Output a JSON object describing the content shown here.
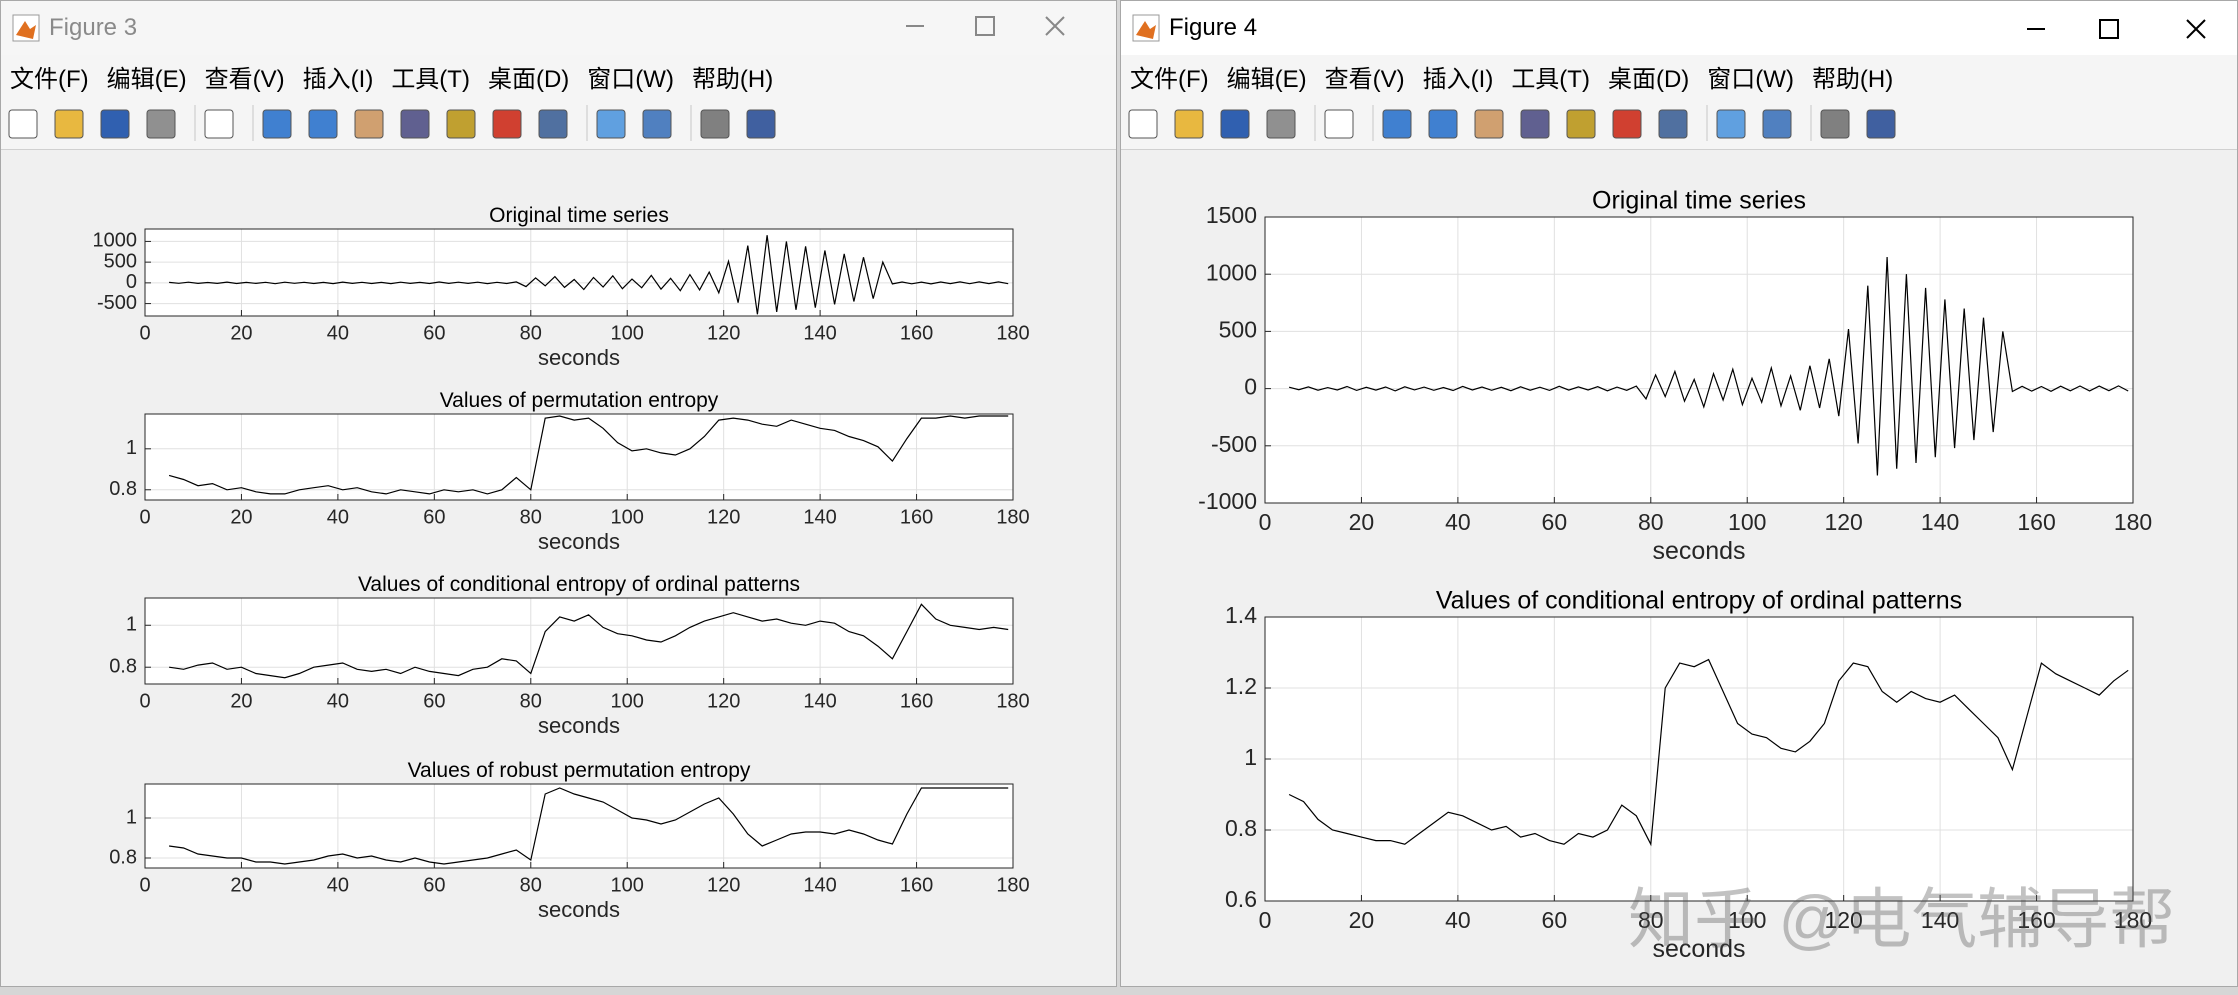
{
  "windows": [
    {
      "title": "Figure 3",
      "menu": [
        "文件(F)",
        "编辑(E)",
        "查看(V)",
        "插入(I)",
        "工具(T)",
        "桌面(D)",
        "窗口(W)",
        "帮助(H)"
      ],
      "charts": [
        {
          "type": "line",
          "title": "Original time series",
          "xlabel": "seconds",
          "color": "#000000",
          "grid": true,
          "xlim": [
            0,
            180
          ],
          "xticks": [
            0,
            20,
            40,
            60,
            80,
            100,
            120,
            140,
            160,
            180
          ],
          "ylim": [
            -800,
            1300
          ],
          "yticks": [
            -500,
            0,
            500,
            1000
          ],
          "x": [
            5,
            7,
            9,
            11,
            13,
            15,
            17,
            19,
            21,
            23,
            25,
            27,
            29,
            31,
            33,
            35,
            37,
            39,
            41,
            43,
            45,
            47,
            49,
            51,
            53,
            55,
            57,
            59,
            61,
            63,
            65,
            67,
            69,
            71,
            73,
            75,
            77,
            79,
            81,
            83,
            85,
            87,
            89,
            91,
            93,
            95,
            97,
            99,
            101,
            103,
            105,
            107,
            109,
            111,
            113,
            115,
            117,
            119,
            121,
            123,
            125,
            127,
            129,
            131,
            133,
            135,
            137,
            139,
            141,
            143,
            145,
            147,
            149,
            151,
            153,
            155,
            157,
            159,
            161,
            163,
            165,
            167,
            169,
            171,
            173,
            175,
            177,
            179
          ],
          "values": [
            12,
            -10,
            15,
            -14,
            9,
            -12,
            18,
            -16,
            11,
            -13,
            14,
            -20,
            16,
            -11,
            13,
            -15,
            10,
            -17,
            19,
            -12,
            14,
            -15,
            11,
            -18,
            16,
            -14,
            12,
            -16,
            20,
            -13,
            15,
            -12,
            17,
            -19,
            13,
            -15,
            22,
            -90,
            120,
            -70,
            150,
            -110,
            80,
            -160,
            130,
            -100,
            170,
            -140,
            90,
            -120,
            180,
            -150,
            110,
            -190,
            200,
            -170,
            260,
            -240,
            520,
            -480,
            900,
            -760,
            1150,
            -700,
            1000,
            -650,
            880,
            -600,
            780,
            -520,
            700,
            -450,
            620,
            -380,
            500,
            -25,
            20,
            -22,
            18,
            -24,
            21,
            -19,
            23,
            -20,
            22,
            -18,
            24,
            -21
          ]
        },
        {
          "type": "line",
          "title": "Values of permutation entropy",
          "xlabel": "seconds",
          "color": "#000000",
          "grid": true,
          "xlim": [
            0,
            180
          ],
          "xticks": [
            0,
            20,
            40,
            60,
            80,
            100,
            120,
            140,
            160,
            180
          ],
          "ylim": [
            0.75,
            1.17
          ],
          "yticks": [
            0.8,
            1
          ],
          "x": [
            5,
            8,
            11,
            14,
            17,
            20,
            23,
            26,
            29,
            32,
            35,
            38,
            41,
            44,
            47,
            50,
            53,
            56,
            59,
            62,
            65,
            68,
            71,
            74,
            77,
            80,
            83,
            86,
            89,
            92,
            95,
            98,
            101,
            104,
            107,
            110,
            113,
            116,
            119,
            122,
            125,
            128,
            131,
            134,
            137,
            140,
            143,
            146,
            149,
            152,
            155,
            158,
            161,
            164,
            167,
            170,
            173,
            176,
            179
          ],
          "values": [
            0.87,
            0.85,
            0.82,
            0.83,
            0.8,
            0.81,
            0.79,
            0.78,
            0.78,
            0.8,
            0.81,
            0.82,
            0.8,
            0.81,
            0.79,
            0.78,
            0.8,
            0.79,
            0.78,
            0.8,
            0.79,
            0.8,
            0.78,
            0.8,
            0.86,
            0.8,
            1.15,
            1.16,
            1.14,
            1.15,
            1.1,
            1.03,
            0.99,
            1.0,
            0.98,
            0.97,
            1.0,
            1.06,
            1.14,
            1.15,
            1.14,
            1.12,
            1.11,
            1.14,
            1.12,
            1.1,
            1.09,
            1.06,
            1.04,
            1.01,
            0.94,
            1.05,
            1.15,
            1.15,
            1.16,
            1.15,
            1.16,
            1.16,
            1.16
          ]
        },
        {
          "type": "line",
          "title": "Values of conditional entropy of ordinal patterns",
          "xlabel": "seconds",
          "color": "#000000",
          "grid": true,
          "xlim": [
            0,
            180
          ],
          "xticks": [
            0,
            20,
            40,
            60,
            80,
            100,
            120,
            140,
            160,
            180
          ],
          "ylim": [
            0.72,
            1.13
          ],
          "yticks": [
            0.8,
            1
          ],
          "x": [
            5,
            8,
            11,
            14,
            17,
            20,
            23,
            26,
            29,
            32,
            35,
            38,
            41,
            44,
            47,
            50,
            53,
            56,
            59,
            62,
            65,
            68,
            71,
            74,
            77,
            80,
            83,
            86,
            89,
            92,
            95,
            98,
            101,
            104,
            107,
            110,
            113,
            116,
            119,
            122,
            125,
            128,
            131,
            134,
            137,
            140,
            143,
            146,
            149,
            152,
            155,
            158,
            161,
            164,
            167,
            170,
            173,
            176,
            179
          ],
          "values": [
            0.8,
            0.79,
            0.81,
            0.82,
            0.79,
            0.8,
            0.77,
            0.76,
            0.75,
            0.77,
            0.8,
            0.81,
            0.82,
            0.79,
            0.78,
            0.79,
            0.77,
            0.8,
            0.78,
            0.77,
            0.76,
            0.79,
            0.8,
            0.84,
            0.83,
            0.77,
            0.97,
            1.04,
            1.02,
            1.05,
            0.99,
            0.96,
            0.95,
            0.93,
            0.92,
            0.95,
            0.99,
            1.02,
            1.04,
            1.06,
            1.04,
            1.02,
            1.03,
            1.01,
            1.0,
            1.02,
            1.01,
            0.97,
            0.95,
            0.9,
            0.84,
            0.97,
            1.1,
            1.03,
            1.0,
            0.99,
            0.98,
            0.99,
            0.98
          ]
        },
        {
          "type": "line",
          "title": "Values of robust permutation entropy",
          "xlabel": "seconds",
          "color": "#000000",
          "grid": true,
          "xlim": [
            0,
            180
          ],
          "xticks": [
            0,
            20,
            40,
            60,
            80,
            100,
            120,
            140,
            160,
            180
          ],
          "ylim": [
            0.75,
            1.17
          ],
          "yticks": [
            0.8,
            1
          ],
          "x": [
            5,
            8,
            11,
            14,
            17,
            20,
            23,
            26,
            29,
            32,
            35,
            38,
            41,
            44,
            47,
            50,
            53,
            56,
            59,
            62,
            65,
            68,
            71,
            74,
            77,
            80,
            83,
            86,
            89,
            92,
            95,
            98,
            101,
            104,
            107,
            110,
            113,
            116,
            119,
            122,
            125,
            128,
            131,
            134,
            137,
            140,
            143,
            146,
            149,
            152,
            155,
            158,
            161,
            164,
            167,
            170,
            173,
            176,
            179
          ],
          "values": [
            0.86,
            0.85,
            0.82,
            0.81,
            0.8,
            0.8,
            0.78,
            0.78,
            0.77,
            0.78,
            0.79,
            0.81,
            0.82,
            0.8,
            0.81,
            0.79,
            0.78,
            0.8,
            0.78,
            0.77,
            0.78,
            0.79,
            0.8,
            0.82,
            0.84,
            0.79,
            1.12,
            1.15,
            1.12,
            1.1,
            1.08,
            1.04,
            1.0,
            0.99,
            0.97,
            0.99,
            1.03,
            1.07,
            1.1,
            1.02,
            0.92,
            0.86,
            0.89,
            0.92,
            0.93,
            0.93,
            0.92,
            0.94,
            0.92,
            0.89,
            0.87,
            1.02,
            1.15,
            1.15,
            1.15,
            1.15,
            1.15,
            1.15,
            1.15
          ]
        }
      ]
    },
    {
      "title": "Figure 4",
      "menu": [
        "文件(F)",
        "编辑(E)",
        "查看(V)",
        "插入(I)",
        "工具(T)",
        "桌面(D)",
        "窗口(W)",
        "帮助(H)"
      ],
      "charts": [
        {
          "type": "line",
          "title": "Original time series",
          "xlabel": "seconds",
          "color": "#000000",
          "grid": true,
          "xlim": [
            0,
            180
          ],
          "xticks": [
            0,
            20,
            40,
            60,
            80,
            100,
            120,
            140,
            160,
            180
          ],
          "ylim": [
            -1000,
            1500
          ],
          "yticks": [
            -1000,
            -500,
            0,
            500,
            1000,
            1500
          ],
          "x": [
            5,
            7,
            9,
            11,
            13,
            15,
            17,
            19,
            21,
            23,
            25,
            27,
            29,
            31,
            33,
            35,
            37,
            39,
            41,
            43,
            45,
            47,
            49,
            51,
            53,
            55,
            57,
            59,
            61,
            63,
            65,
            67,
            69,
            71,
            73,
            75,
            77,
            79,
            81,
            83,
            85,
            87,
            89,
            91,
            93,
            95,
            97,
            99,
            101,
            103,
            105,
            107,
            109,
            111,
            113,
            115,
            117,
            119,
            121,
            123,
            125,
            127,
            129,
            131,
            133,
            135,
            137,
            139,
            141,
            143,
            145,
            147,
            149,
            151,
            153,
            155,
            157,
            159,
            161,
            163,
            165,
            167,
            169,
            171,
            173,
            175,
            177,
            179
          ],
          "values": [
            12,
            -10,
            15,
            -14,
            9,
            -12,
            18,
            -16,
            11,
            -13,
            14,
            -20,
            16,
            -11,
            13,
            -15,
            10,
            -17,
            19,
            -12,
            14,
            -15,
            11,
            -18,
            16,
            -14,
            12,
            -16,
            20,
            -13,
            15,
            -12,
            17,
            -19,
            13,
            -15,
            22,
            -90,
            120,
            -70,
            150,
            -110,
            80,
            -160,
            130,
            -100,
            170,
            -140,
            90,
            -120,
            180,
            -150,
            110,
            -190,
            200,
            -170,
            260,
            -240,
            520,
            -480,
            900,
            -760,
            1150,
            -700,
            1000,
            -650,
            880,
            -600,
            780,
            -520,
            700,
            -450,
            620,
            -380,
            500,
            -25,
            20,
            -22,
            18,
            -24,
            21,
            -19,
            23,
            -20,
            22,
            -18,
            24,
            -21
          ]
        },
        {
          "type": "line",
          "title": "Values of conditional entropy of ordinal patterns",
          "xlabel": "seconds",
          "color": "#000000",
          "grid": true,
          "xlim": [
            0,
            180
          ],
          "xticks": [
            0,
            20,
            40,
            60,
            80,
            100,
            120,
            140,
            160,
            180
          ],
          "ylim": [
            0.6,
            1.4
          ],
          "yticks": [
            0.6,
            0.8,
            1,
            1.2,
            1.4
          ],
          "x": [
            5,
            8,
            11,
            14,
            17,
            20,
            23,
            26,
            29,
            32,
            35,
            38,
            41,
            44,
            47,
            50,
            53,
            56,
            59,
            62,
            65,
            68,
            71,
            74,
            77,
            80,
            83,
            86,
            89,
            92,
            95,
            98,
            101,
            104,
            107,
            110,
            113,
            116,
            119,
            122,
            125,
            128,
            131,
            134,
            137,
            140,
            143,
            146,
            149,
            152,
            155,
            158,
            161,
            164,
            167,
            170,
            173,
            176,
            179
          ],
          "values": [
            0.9,
            0.88,
            0.83,
            0.8,
            0.79,
            0.78,
            0.77,
            0.77,
            0.76,
            0.79,
            0.82,
            0.85,
            0.84,
            0.82,
            0.8,
            0.81,
            0.78,
            0.79,
            0.77,
            0.76,
            0.79,
            0.78,
            0.8,
            0.87,
            0.84,
            0.76,
            1.2,
            1.27,
            1.26,
            1.28,
            1.19,
            1.1,
            1.07,
            1.06,
            1.03,
            1.02,
            1.05,
            1.1,
            1.22,
            1.27,
            1.26,
            1.19,
            1.16,
            1.19,
            1.17,
            1.16,
            1.18,
            1.14,
            1.1,
            1.06,
            0.97,
            1.12,
            1.27,
            1.24,
            1.22,
            1.2,
            1.18,
            1.22,
            1.25
          ]
        }
      ]
    }
  ],
  "watermark": "知乎 @电气辅导帮"
}
